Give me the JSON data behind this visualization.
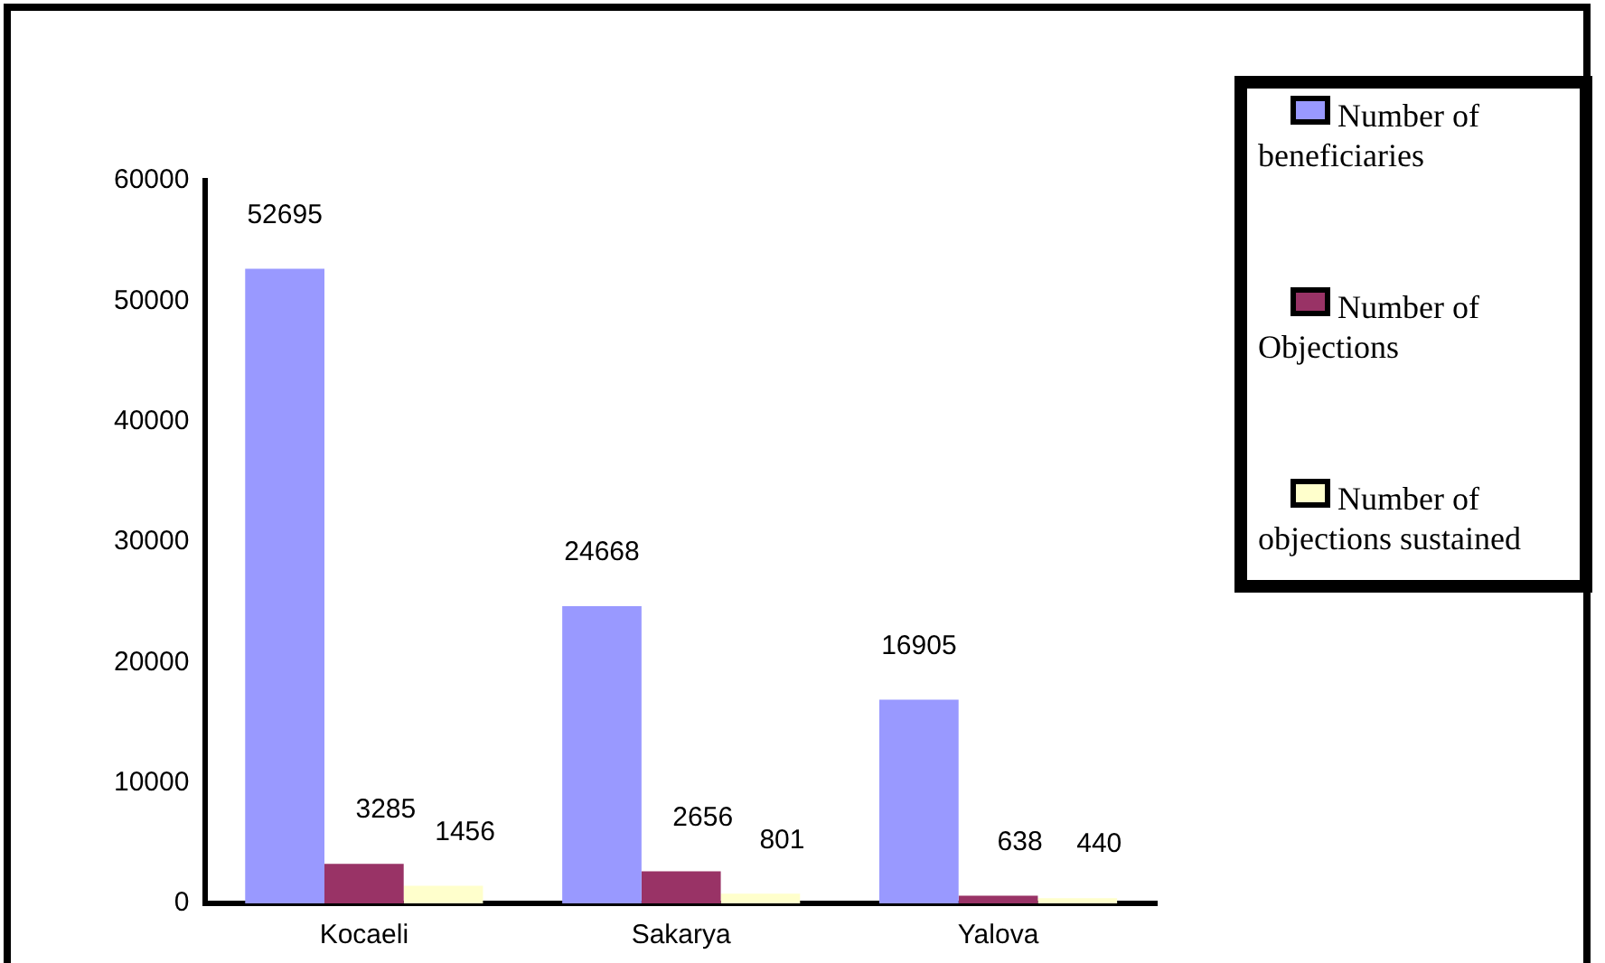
{
  "chart_data": {
    "type": "bar",
    "categories": [
      "Kocaeli",
      "Sakarya",
      "Yalova"
    ],
    "series": [
      {
        "name": "Number of beneficiaries",
        "color": "#9999ff",
        "values": [
          52695,
          24668,
          16905
        ]
      },
      {
        "name": "Number of Objections",
        "color": "#993366",
        "values": [
          3285,
          2656,
          638
        ]
      },
      {
        "name": "Number of objections sustained",
        "color": "#ffffcc",
        "values": [
          1456,
          801,
          440
        ]
      }
    ],
    "ylim": [
      0,
      60000
    ],
    "yticks": [
      0,
      10000,
      20000,
      30000,
      40000,
      50000,
      60000
    ],
    "grid": false,
    "legend": "right",
    "data_labels": true
  }
}
